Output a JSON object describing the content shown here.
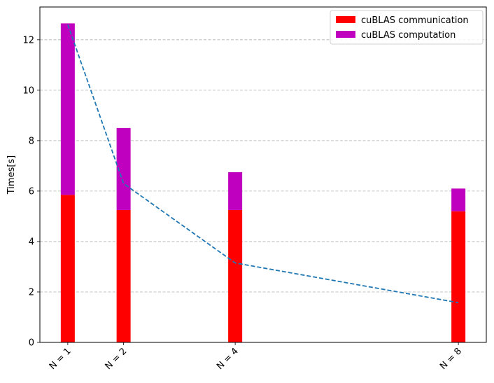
{
  "chart_data": {
    "type": "bar",
    "stacked": true,
    "x": [
      1,
      2,
      4,
      8
    ],
    "categories": [
      "N = 1",
      "N = 2",
      "N = 4",
      "N = 8"
    ],
    "series": [
      {
        "name": "cuBLAS communication",
        "color": "#ff0000",
        "values": [
          5.85,
          5.25,
          5.25,
          5.2
        ]
      },
      {
        "name": "cuBLAS computation",
        "color": "#bf00bf",
        "values": [
          6.8,
          3.25,
          1.5,
          0.9
        ]
      }
    ],
    "line": {
      "style": "dashed",
      "color": "#1f77b4",
      "values": [
        12.6,
        6.3,
        3.15,
        1.575
      ]
    },
    "title": "",
    "xlabel": "",
    "ylabel": "Times[s]",
    "ylim": [
      0,
      13.3
    ],
    "yticks": [
      0,
      2,
      4,
      6,
      8,
      10,
      12
    ],
    "xlim": [
      0.5,
      8.5
    ],
    "grid": "y-dashed",
    "legend": "top-right"
  }
}
